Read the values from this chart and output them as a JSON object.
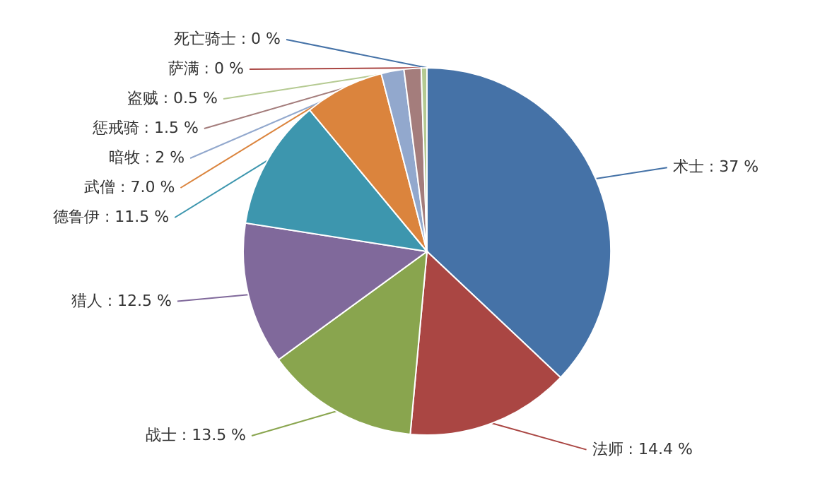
{
  "chart_data": {
    "type": "pie",
    "categories": [
      "术士",
      "法师",
      "战士",
      "猎人",
      "德鲁伊",
      "武僧",
      "暗牧",
      "惩戒骑",
      "盗贼",
      "萨满",
      "死亡骑士"
    ],
    "values": [
      37,
      14.4,
      13.5,
      12.5,
      11.5,
      7.0,
      2,
      1.5,
      0.5,
      0,
      0
    ],
    "value_labels": [
      ": 37 %",
      ": 14.4 %",
      ": 13.5 %",
      ": 12.5 %",
      ": 11.5 %",
      ": 7.0 %",
      ": 2 %",
      ": 1.5 %",
      ": 0.5 %",
      ": 0 %",
      ": 0 %"
    ],
    "colors": [
      "#4572a7",
      "#aa4643",
      "#89a54e",
      "#80699b",
      "#3d96ae",
      "#db843d",
      "#92a8cd",
      "#a47d7c",
      "#b5ca92",
      "#aa4643",
      "#4572a7"
    ]
  }
}
